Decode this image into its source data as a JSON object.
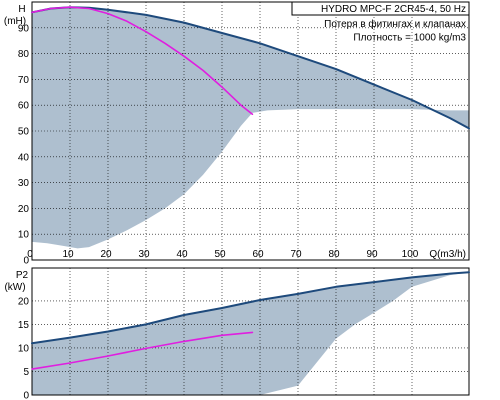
{
  "colors": {
    "region_fill": "#aebfcf",
    "pump_curve": "#1e4a7c",
    "duty_curve": "#e01ee0",
    "grid": "#000000",
    "frame": "#000000"
  },
  "chart_data": [
    {
      "type": "area",
      "name": "head",
      "ylabel_line1": "H",
      "ylabel_line2": "(mH)",
      "xlabel": "Q(m3/h)",
      "xlim": [
        0,
        115
      ],
      "ylim": [
        0,
        100
      ],
      "x_ticks": [
        0,
        10,
        20,
        30,
        40,
        50,
        60,
        70,
        80,
        90,
        100
      ],
      "y_ticks": [
        0,
        10,
        20,
        30,
        40,
        50,
        60,
        70,
        80,
        90
      ],
      "grid": true,
      "info_lines": [
        "HYDRO MPC-F 2CR45-4, 50 Hz",
        "Потеря в фитингах и клапанах",
        "Плотность = 1000 kg/m3"
      ],
      "operating_region": {
        "upper_x": [
          0,
          5,
          10,
          15,
          20,
          30,
          40,
          50,
          60,
          70,
          80,
          90,
          100,
          110,
          115
        ],
        "upper_y": [
          96,
          97.5,
          98,
          97.8,
          97,
          95,
          92,
          88,
          84,
          79,
          74,
          68,
          62,
          55,
          51
        ],
        "lower_x": [
          115,
          110,
          100,
          90,
          80,
          70,
          62,
          58,
          55,
          50,
          45,
          40,
          35,
          30,
          25,
          20,
          15,
          12,
          8,
          4,
          0
        ],
        "lower_y": [
          58,
          58,
          58.5,
          58.5,
          58.5,
          58.5,
          58,
          57,
          52,
          42,
          33,
          25.5,
          20,
          15.5,
          11.5,
          8,
          5,
          4.5,
          5.5,
          6.5,
          7
        ]
      },
      "series": [
        {
          "kind": "pump_curve",
          "x": [
            0,
            5,
            10,
            15,
            20,
            30,
            40,
            50,
            60,
            70,
            80,
            90,
            100,
            110,
            115
          ],
          "y": [
            96,
            97.5,
            98,
            97.8,
            97,
            95,
            92,
            88,
            84,
            79,
            74,
            68,
            62,
            55,
            51
          ]
        },
        {
          "kind": "duty_curve",
          "x": [
            0,
            5,
            10,
            15,
            20,
            25,
            30,
            35,
            40,
            45,
            50,
            55,
            58
          ],
          "y": [
            96,
            97.5,
            98,
            97.5,
            95.5,
            92.5,
            88.5,
            84,
            79,
            73.5,
            67,
            60,
            56.5
          ]
        }
      ]
    },
    {
      "type": "area",
      "name": "power",
      "ylabel_line1": "P2",
      "ylabel_line2": "(kW)",
      "xlim": [
        0,
        115
      ],
      "ylim": [
        0,
        27
      ],
      "y_ticks": [
        0,
        5,
        10,
        15,
        20
      ],
      "grid": true,
      "operating_region": {
        "upper_x": [
          0,
          10,
          20,
          30,
          40,
          50,
          60,
          70,
          80,
          90,
          100,
          110,
          115
        ],
        "upper_y": [
          11,
          12.2,
          13.5,
          15,
          17,
          18.5,
          20.2,
          21.5,
          23,
          24,
          25,
          25.8,
          26.1
        ],
        "lower_x": [
          115,
          110,
          100,
          95,
          90,
          85,
          80,
          75,
          70,
          60,
          58,
          50,
          40,
          30,
          20,
          10,
          0
        ],
        "lower_y": [
          26.1,
          25.5,
          23,
          20,
          17.5,
          15,
          12,
          7,
          2,
          0,
          0,
          0,
          0,
          0,
          0,
          0,
          0
        ]
      },
      "series": [
        {
          "kind": "pump_curve",
          "x": [
            0,
            10,
            20,
            30,
            40,
            50,
            60,
            70,
            80,
            90,
            100,
            110,
            115
          ],
          "y": [
            11,
            12.2,
            13.5,
            15,
            17,
            18.5,
            20.2,
            21.5,
            23,
            24,
            25,
            25.8,
            26.1
          ]
        },
        {
          "kind": "duty_curve",
          "x": [
            0,
            10,
            20,
            30,
            40,
            50,
            58
          ],
          "y": [
            5.5,
            6.8,
            8.3,
            9.9,
            11.4,
            12.7,
            13.3
          ]
        }
      ]
    }
  ]
}
